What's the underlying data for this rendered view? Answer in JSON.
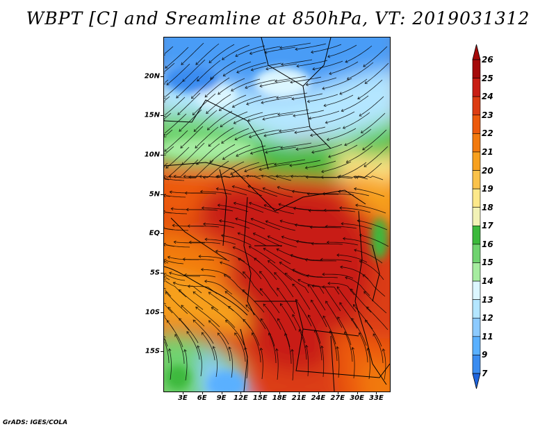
{
  "title": "WBPT [C] and Sreamline at 850hPa, VT: 2019031312",
  "credit": "GrADS: IGES/COLA",
  "map": {
    "region_lon_range": [
      0,
      35
    ],
    "region_lat_range": [
      -20,
      25
    ],
    "lat_labels": [
      {
        "text": "20N",
        "lat": 20
      },
      {
        "text": "15N",
        "lat": 15
      },
      {
        "text": "10N",
        "lat": 10
      },
      {
        "text": "5N",
        "lat": 5
      },
      {
        "text": "EQ",
        "lat": 0
      },
      {
        "text": "5S",
        "lat": -5
      },
      {
        "text": "10S",
        "lat": -10
      },
      {
        "text": "15S",
        "lat": -15
      }
    ],
    "lon_labels": [
      {
        "text": "3E",
        "lon": 3
      },
      {
        "text": "6E",
        "lon": 6
      },
      {
        "text": "9E",
        "lon": 9
      },
      {
        "text": "12E",
        "lon": 12
      },
      {
        "text": "15E",
        "lon": 15
      },
      {
        "text": "18E",
        "lon": 18
      },
      {
        "text": "21E",
        "lon": 21
      },
      {
        "text": "24E",
        "lon": 24
      },
      {
        "text": "27E",
        "lon": 27
      },
      {
        "text": "30E",
        "lon": 30
      },
      {
        "text": "33E",
        "lon": 33
      }
    ]
  },
  "colorbar": {
    "levels": [
      "26",
      "25",
      "24",
      "23",
      "22",
      "21",
      "20",
      "19",
      "18",
      "17",
      "16",
      "15",
      "14",
      "13",
      "12",
      "11",
      "9",
      "7"
    ],
    "colors": [
      "#a50a0a",
      "#c81e14",
      "#dc3c12",
      "#ec5a0c",
      "#f27a0e",
      "#f7a01e",
      "#fac24a",
      "#fce88a",
      "#f2f2b6",
      "#3cb93c",
      "#6fd36f",
      "#a6eca0",
      "#dcf6ff",
      "#b4e6ff",
      "#8ccaff",
      "#5ab0ff",
      "#3a8cf0",
      "#1e64dc"
    ],
    "top_arrow_color": "#a50a0a",
    "bottom_arrow_color": "#1e64dc"
  }
}
